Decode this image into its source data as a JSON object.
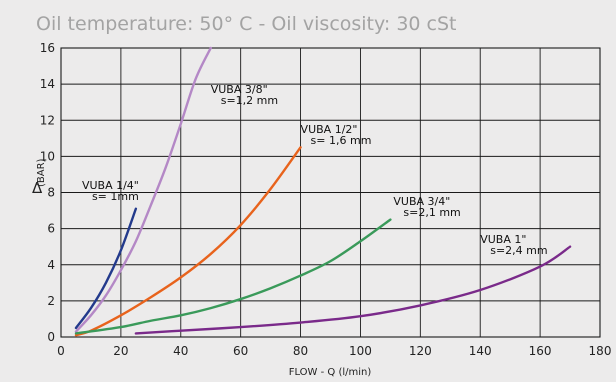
{
  "chart_data": {
    "type": "line",
    "title": "Oil temperature: 50° C - Oil viscosity: 30 cSt",
    "xlabel": "FLOW - Q (l/min)",
    "ylabel_symbol": "Δ",
    "ylabel_unit": "(BAR)",
    "xlim": [
      0,
      180
    ],
    "ylim": [
      0,
      16
    ],
    "x_ticks": [
      0,
      20,
      40,
      60,
      80,
      100,
      120,
      140,
      160,
      180
    ],
    "y_ticks": [
      0,
      2,
      4,
      6,
      8,
      10,
      12,
      14,
      16
    ],
    "grid": true,
    "series": [
      {
        "name": "VUBA 1/4\"",
        "subtitle": "s= 1mm",
        "color": "#233a8c",
        "points": [
          [
            5,
            0.5
          ],
          [
            10,
            1.6
          ],
          [
            15,
            3.0
          ],
          [
            20,
            4.8
          ],
          [
            25,
            7.1
          ]
        ]
      },
      {
        "name": "VUBA 3/8\"",
        "subtitle": "s=1,2 mm",
        "color": "#b488c6",
        "points": [
          [
            5,
            0.3
          ],
          [
            10,
            1.2
          ],
          [
            15,
            2.3
          ],
          [
            20,
            3.7
          ],
          [
            25,
            5.3
          ],
          [
            30,
            7.3
          ],
          [
            35,
            9.4
          ],
          [
            40,
            11.8
          ],
          [
            45,
            14.3
          ],
          [
            50,
            16.0
          ]
        ]
      },
      {
        "name": "VUBA 1/2\"",
        "subtitle": "s= 1,6 mm",
        "color": "#e8631c",
        "points": [
          [
            5,
            0.1
          ],
          [
            10,
            0.35
          ],
          [
            20,
            1.2
          ],
          [
            30,
            2.2
          ],
          [
            40,
            3.3
          ],
          [
            50,
            4.6
          ],
          [
            60,
            6.2
          ],
          [
            70,
            8.2
          ],
          [
            80,
            10.5
          ]
        ]
      },
      {
        "name": "VUBA 3/4\"",
        "subtitle": "s=2,1 mm",
        "color": "#3a9a5a",
        "points": [
          [
            5,
            0.2
          ],
          [
            20,
            0.55
          ],
          [
            30,
            0.9
          ],
          [
            40,
            1.2
          ],
          [
            50,
            1.6
          ],
          [
            60,
            2.1
          ],
          [
            70,
            2.7
          ],
          [
            80,
            3.4
          ],
          [
            90,
            4.2
          ],
          [
            100,
            5.3
          ],
          [
            110,
            6.5
          ]
        ]
      },
      {
        "name": "VUBA 1\"",
        "subtitle": "s=2,4 mm",
        "color": "#7a2a8a",
        "points": [
          [
            25,
            0.2
          ],
          [
            40,
            0.35
          ],
          [
            60,
            0.55
          ],
          [
            80,
            0.8
          ],
          [
            100,
            1.15
          ],
          [
            120,
            1.75
          ],
          [
            140,
            2.6
          ],
          [
            160,
            3.9
          ],
          [
            170,
            5.0
          ]
        ]
      }
    ],
    "annotations": [
      {
        "title": "VUBA 1/4\"",
        "subtitle": "s= 1mm",
        "x": 7,
        "y": 8.2
      },
      {
        "title": "VUBA 3/8\"",
        "subtitle": "s=1,2 mm",
        "x": 50,
        "y": 13.5
      },
      {
        "title": "VUBA 1/2\"",
        "subtitle": "s= 1,6 mm",
        "x": 80,
        "y": 11.3
      },
      {
        "title": "VUBA 3/4\"",
        "subtitle": "s=2,1 mm",
        "x": 111,
        "y": 7.3
      },
      {
        "title": "VUBA 1\"",
        "subtitle": "s=2,4 mm",
        "x": 140,
        "y": 5.2
      }
    ]
  }
}
